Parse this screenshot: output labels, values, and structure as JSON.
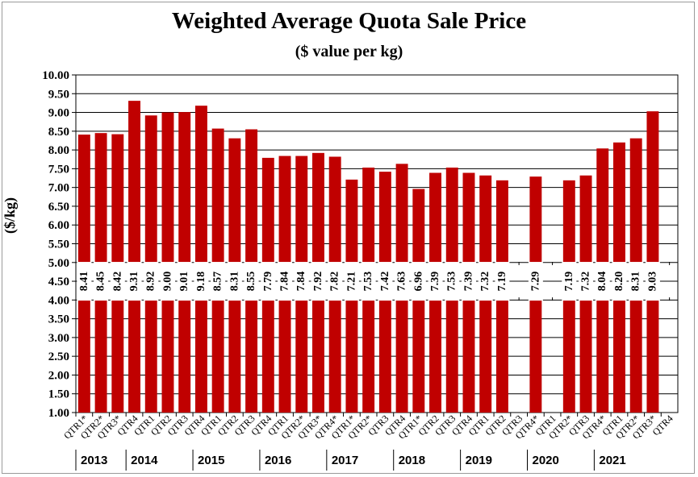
{
  "chart_data": {
    "type": "bar",
    "title": "Weighted Average Quota Sale Price",
    "subtitle": "($ value per kg)",
    "xlabel": "",
    "ylabel": "($/kg)",
    "ylim": [
      1.0,
      10.0
    ],
    "ytick_step": 0.5,
    "yticks": [
      "1.00",
      "1.50",
      "2.00",
      "2.50",
      "3.00",
      "3.50",
      "4.00",
      "4.50",
      "5.00",
      "5.50",
      "6.00",
      "6.50",
      "7.00",
      "7.50",
      "8.00",
      "8.50",
      "9.00",
      "9.50",
      "10.00"
    ],
    "grid": true,
    "bar_color": "#c00000",
    "categories": [
      "QTR1*",
      "QTR2*",
      "QTR3*",
      "QTR4",
      "QTR1",
      "QTR2",
      "QTR3",
      "QTR4",
      "QTR1",
      "QTR2",
      "QTR3",
      "QTR4",
      "QTR1",
      "QTR2*",
      "QTR3*",
      "QTR4*",
      "QTR1*",
      "QTR2*",
      "QTR3",
      "QTR4",
      "QTR1*",
      "QTR2",
      "QTR3",
      "QTR4",
      "QTR1",
      "QTR2",
      "QTR3",
      "QTR4*",
      "QTR1",
      "QTR2*",
      "QTR3",
      "QTR4*",
      "QTR1",
      "QTR2*",
      "QTR3*",
      "QTR4"
    ],
    "values": [
      8.41,
      8.45,
      8.42,
      9.31,
      8.92,
      9.0,
      9.01,
      9.18,
      8.57,
      8.31,
      8.55,
      7.79,
      7.84,
      7.84,
      7.92,
      7.82,
      7.21,
      7.53,
      7.42,
      7.63,
      6.96,
      7.39,
      7.53,
      7.39,
      7.32,
      7.19,
      null,
      7.29,
      null,
      7.19,
      7.32,
      8.04,
      8.2,
      8.31,
      9.03,
      null
    ],
    "data_labels": [
      "8.41",
      "8.45",
      "8.42",
      "9.31",
      "8.92",
      "9.00",
      "9.01",
      "9.18",
      "8.57",
      "8.31",
      "8.55",
      "7.79",
      "7.84",
      "7.84",
      "7.92",
      "7.82",
      "7.21",
      "7.53",
      "7.42",
      "7.63",
      "6.96",
      "7.39",
      "7.53",
      "7.39",
      "7.32",
      "7.19",
      "",
      "7.29",
      "",
      "7.19",
      "7.32",
      "8.04",
      "8.20",
      "8.31",
      "9.03",
      ""
    ],
    "years": [
      {
        "label": "2013",
        "start": 0,
        "end": 3
      },
      {
        "label": "2014",
        "start": 3,
        "end": 7
      },
      {
        "label": "2015",
        "start": 7,
        "end": 11
      },
      {
        "label": "2016",
        "start": 11,
        "end": 15
      },
      {
        "label": "2017",
        "start": 15,
        "end": 19
      },
      {
        "label": "2018",
        "start": 19,
        "end": 23
      },
      {
        "label": "2019",
        "start": 23,
        "end": 27
      },
      {
        "label": "2020",
        "start": 27,
        "end": 31
      },
      {
        "label": "2021",
        "start": 31,
        "end": 36
      }
    ]
  }
}
